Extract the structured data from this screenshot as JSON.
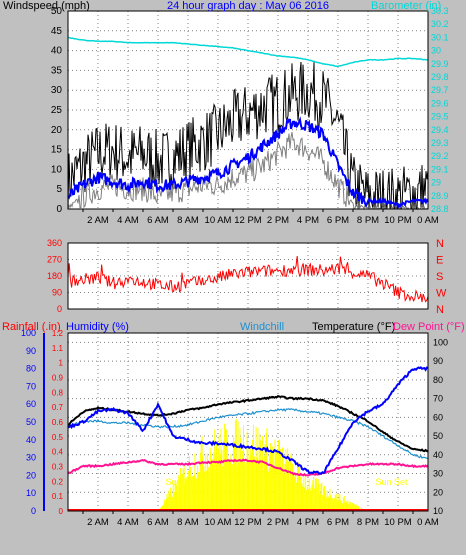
{
  "title": "24 hour graph day : May 06 2016",
  "colors": {
    "bg": "#c0c0c0",
    "windspeed": "#000000",
    "windavg": "#0000ff",
    "windgust": "#808080",
    "barometer": "#00d8d8",
    "direction": "#ff0000",
    "rainfall": "#ff0000",
    "humidity": "#0000ff",
    "windchill": "#1e90d0",
    "temperature": "#000000",
    "dewpoint": "#ff1493",
    "solar": "#ffff00"
  },
  "chart_data": [
    {
      "type": "line",
      "title": "24 hour graph day : May 06 2016",
      "ylabel": "Windspeed (mph)",
      "y2label": "Barometer (in)",
      "ylim": [
        0,
        50
      ],
      "y2lim": [
        28.8,
        30.3
      ],
      "yticks": [
        "0",
        "5",
        "10",
        "15",
        "20",
        "25",
        "30",
        "35",
        "40",
        "45",
        "50"
      ],
      "y2ticks": [
        "28.8",
        "28.9",
        "29",
        "29.1",
        "29.2",
        "29.3",
        "29.4",
        "29.5",
        "29.6",
        "29.7",
        "29.8",
        "29.9",
        "30",
        "30.1",
        "30.2",
        "30.3"
      ],
      "xticks": [
        "2 AM",
        "4 AM",
        "6 AM",
        "8 AM",
        "10 AM",
        "12 PM",
        "2 PM",
        "4 PM",
        "6 PM",
        "8 PM",
        "10 PM",
        "0 AM"
      ],
      "x_hours": [
        0,
        1,
        2,
        3,
        4,
        5,
        6,
        7,
        8,
        9,
        10,
        11,
        12,
        13,
        14,
        15,
        16,
        17,
        18,
        19,
        20,
        21,
        22,
        23,
        24
      ],
      "series": [
        {
          "name": "Windspeed",
          "values": [
            7,
            11,
            14,
            15,
            13,
            14,
            12,
            13,
            15,
            17,
            19,
            22,
            24,
            26,
            27,
            29,
            30,
            28,
            21,
            6,
            3,
            3,
            3,
            4,
            5
          ]
        },
        {
          "name": "",
          "role": "average",
          "values": [
            3,
            6,
            8,
            7,
            6,
            7,
            6,
            6,
            7,
            8,
            9,
            11,
            13,
            16,
            19,
            22,
            21,
            19,
            11,
            4,
            2,
            2,
            1,
            2,
            2
          ]
        },
        {
          "name": "",
          "role": "gust",
          "values": [
            0,
            3,
            5,
            6,
            5,
            5,
            3,
            4,
            5,
            6,
            6,
            8,
            9,
            11,
            14,
            17,
            15,
            12,
            6,
            1,
            0,
            0,
            0,
            0,
            0
          ]
        },
        {
          "name": "Barometer",
          "axis": "y2",
          "values": [
            30.1,
            30.08,
            30.07,
            30.07,
            30.06,
            30.06,
            30.06,
            30.06,
            30.05,
            30.04,
            30.03,
            30.02,
            30.0,
            29.98,
            29.96,
            29.95,
            29.93,
            29.9,
            29.88,
            29.91,
            29.93,
            29.93,
            29.94,
            29.94,
            29.93
          ]
        }
      ]
    },
    {
      "type": "scatter",
      "ylabel": "",
      "ylim": [
        0,
        360
      ],
      "yticks": [
        "0",
        "90",
        "180",
        "270",
        "360"
      ],
      "compass": [
        "N",
        "W",
        "S",
        "E",
        "N"
      ],
      "x_hours": [
        0,
        1,
        2,
        3,
        4,
        5,
        6,
        7,
        8,
        9,
        10,
        11,
        12,
        13,
        14,
        15,
        16,
        17,
        18,
        19,
        20,
        21,
        22,
        23,
        24
      ],
      "series": [
        {
          "name": "Wind direction",
          "values": [
            150,
            160,
            170,
            140,
            160,
            150,
            130,
            120,
            140,
            150,
            170,
            190,
            200,
            205,
            210,
            215,
            215,
            210,
            220,
            200,
            180,
            140,
            90,
            70,
            60
          ]
        }
      ]
    },
    {
      "type": "line",
      "labels": {
        "rainfall": "Rainfall (.in)",
        "humidity": "Humidity (%)",
        "windchill": "Windchill",
        "temperature": "Temperature (°F)",
        "dewpoint": "Dew Point (°F)",
        "sunrise": "Sun Ri",
        "sunset": "Sun Set"
      },
      "ylim_rain": [
        0,
        1.2
      ],
      "ylim_humidity": [
        0,
        100
      ],
      "ylim_temp": [
        10,
        105
      ],
      "rain_ticks": [
        "0",
        "0.1",
        "0.2",
        "0.3",
        "0.4",
        "0.5",
        "0.6",
        "0.7",
        "0.8",
        "0.9",
        "1",
        "1.1",
        "1.2"
      ],
      "humidity_ticks": [
        "0",
        "10",
        "20",
        "30",
        "40",
        "50",
        "60",
        "70",
        "80",
        "90",
        "100"
      ],
      "temp_ticks": [
        "10",
        "20",
        "30",
        "40",
        "50",
        "60",
        "70",
        "80",
        "90",
        "100"
      ],
      "xticks": [
        "2 AM",
        "4 AM",
        "6 AM",
        "8 AM",
        "10 AM",
        "12 PM",
        "2 PM",
        "4 PM",
        "6 PM",
        "8 PM",
        "10 PM",
        "0 AM"
      ],
      "x_hours": [
        0,
        1,
        2,
        3,
        4,
        5,
        6,
        7,
        8,
        9,
        10,
        11,
        12,
        13,
        14,
        15,
        16,
        17,
        18,
        19,
        20,
        21,
        22,
        23,
        24
      ],
      "series": [
        {
          "name": "Temperature",
          "axis": "temp",
          "values": [
            56,
            63,
            65,
            64,
            63,
            62,
            61,
            62,
            64,
            65,
            67,
            68,
            69,
            70,
            71,
            70,
            70,
            69,
            66,
            62,
            58,
            52,
            47,
            43,
            42
          ]
        },
        {
          "name": "Windchill",
          "axis": "temp",
          "values": [
            55,
            58,
            58,
            57,
            57,
            56,
            55,
            55,
            56,
            58,
            60,
            61,
            62,
            63,
            64,
            64,
            63,
            62,
            60,
            58,
            55,
            50,
            45,
            40,
            38
          ]
        },
        {
          "name": "Dew Point",
          "axis": "temp",
          "values": [
            30,
            34,
            34,
            35,
            36,
            37,
            35,
            35,
            35,
            36,
            36,
            37,
            37,
            36,
            33,
            30,
            29,
            30,
            33,
            34,
            35,
            35,
            35,
            34,
            34
          ]
        },
        {
          "name": "Humidity",
          "axis": "humidity",
          "values": [
            47,
            50,
            56,
            57,
            55,
            45,
            60,
            42,
            40,
            38,
            38,
            37,
            36,
            35,
            33,
            28,
            22,
            21,
            35,
            50,
            56,
            60,
            71,
            80,
            80
          ]
        },
        {
          "name": "Rainfall",
          "axis": "rain",
          "values": [
            0,
            0,
            0,
            0,
            0,
            0,
            0,
            0,
            0,
            0,
            0,
            0,
            0,
            0,
            0,
            0,
            0,
            0,
            0,
            0,
            0,
            0,
            0,
            0,
            0
          ]
        },
        {
          "name": "Solar",
          "role": "fill",
          "axis": "rain",
          "values": [
            0,
            0,
            0,
            0,
            0,
            0,
            0,
            0.15,
            0.3,
            0.4,
            0.45,
            0.48,
            0.5,
            0.45,
            0.4,
            0.3,
            0.2,
            0.15,
            0.1,
            0.05,
            0,
            0,
            0,
            0,
            0
          ]
        }
      ]
    }
  ]
}
